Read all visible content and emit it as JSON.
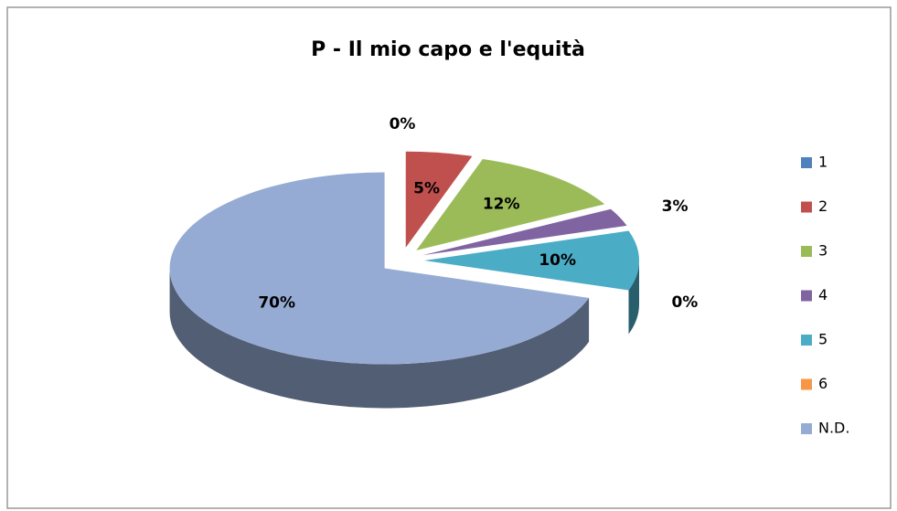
{
  "chart_data": {
    "type": "pie",
    "title": "P - Il mio capo e l'equità",
    "categories": [
      "1",
      "2",
      "3",
      "4",
      "5",
      "6",
      "N.D."
    ],
    "values": [
      0,
      5,
      12,
      3,
      10,
      0,
      70
    ],
    "value_labels": [
      "0%",
      "5%",
      "12%",
      "3%",
      "10%",
      "0%",
      "70%"
    ],
    "colors": [
      "#4f81bd",
      "#c0504d",
      "#9bbb59",
      "#8064a2",
      "#4bacc6",
      "#f79646",
      "#95abd3"
    ],
    "legend": "right"
  }
}
